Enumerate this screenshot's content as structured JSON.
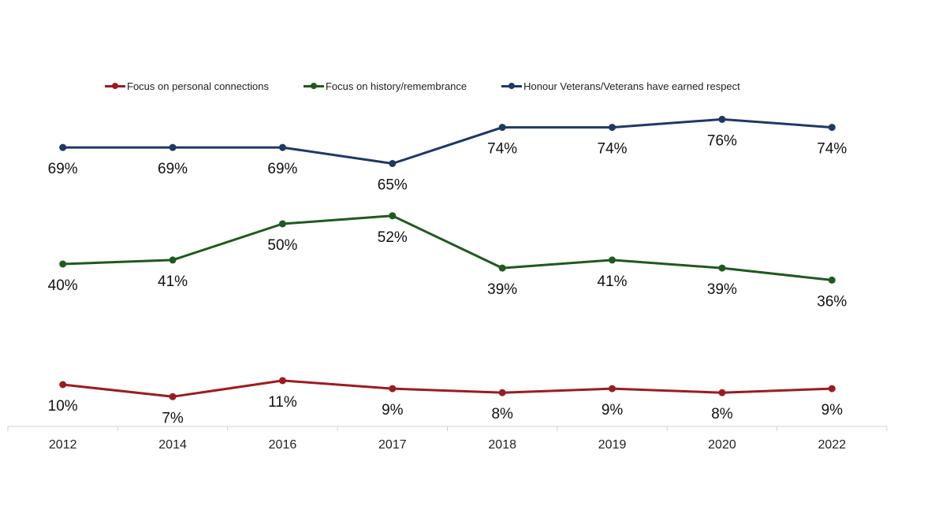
{
  "chart_data": {
    "type": "line",
    "categories": [
      "2012",
      "2014",
      "2016",
      "2017",
      "2018",
      "2019",
      "2020",
      "2022"
    ],
    "ylim": [
      0,
      100
    ],
    "grid": false,
    "legend_position": "top",
    "series": [
      {
        "name": "Focus on personal connections",
        "color": "#9B1C20",
        "values": [
          10,
          7,
          11,
          9,
          8,
          9,
          8,
          9
        ]
      },
      {
        "name": "Focus on history/remembrance",
        "color": "#1E5A1E",
        "values": [
          40,
          41,
          50,
          52,
          39,
          41,
          39,
          36
        ]
      },
      {
        "name": "Honour Veterans/Veterans have earned respect",
        "color": "#1F3864",
        "values": [
          69,
          69,
          69,
          65,
          74,
          74,
          76,
          74
        ]
      }
    ],
    "value_suffix": "%"
  }
}
